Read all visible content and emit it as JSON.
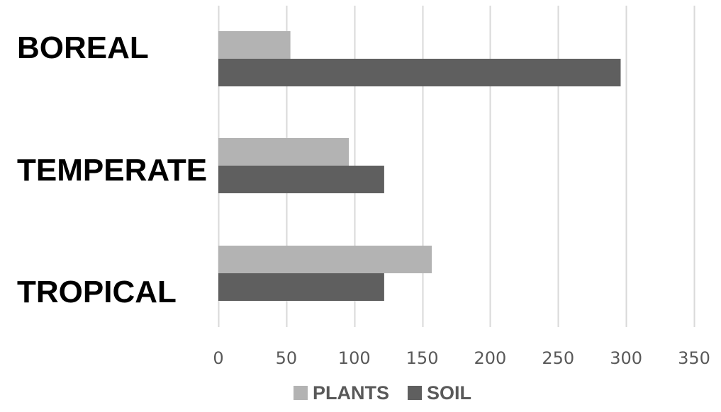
{
  "chart_data": {
    "type": "bar",
    "orientation": "horizontal",
    "categories": [
      "BOREAL",
      "TEMPERATE",
      "TROPICAL"
    ],
    "series": [
      {
        "name": "PLANTS",
        "values": [
          53,
          96,
          157
        ],
        "color": "#b3b3b3"
      },
      {
        "name": "SOIL",
        "values": [
          296,
          122,
          122
        ],
        "color": "#5f5f5f"
      }
    ],
    "xlim": [
      0,
      350
    ],
    "xticks": [
      0,
      50,
      100,
      150,
      200,
      250,
      300,
      350
    ],
    "title": "",
    "xlabel": "",
    "ylabel": "",
    "grid": "vertical",
    "legend": "bottom-center"
  }
}
